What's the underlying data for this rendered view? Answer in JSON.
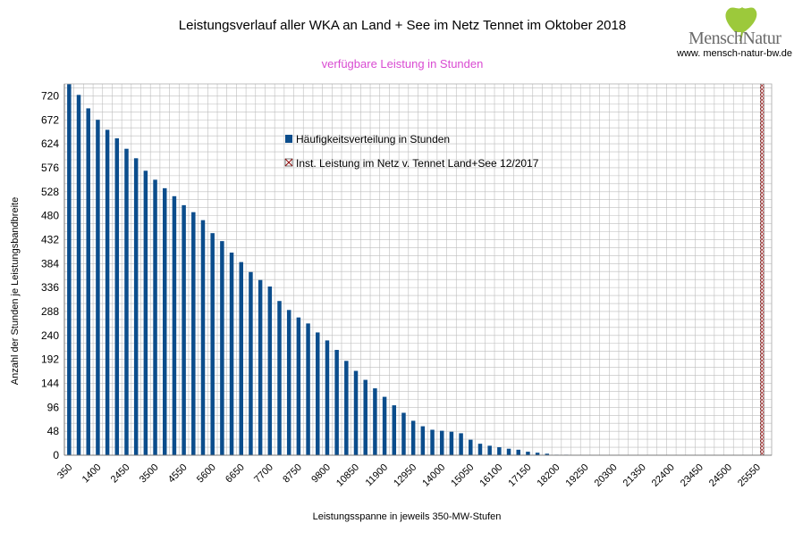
{
  "header": {
    "logo_text": "MenschNatur",
    "website": "www. mensch-natur-bw.de"
  },
  "colors": {
    "bar": "#0b4d8c",
    "subtitle": "#d94bd2",
    "grid": "#bdbdbd",
    "leaf": "#9cc93b"
  },
  "chart_data": {
    "type": "bar",
    "title": "Leistungsverlauf aller WKA an Land + See im Netz Tennet im Oktober 2018",
    "subtitle": "verfügbare Leistung in Stunden",
    "xlabel": "Leistungsspanne in jeweils 350-MW-Stufen",
    "ylabel": "Anzahl der Stunden je Leistungsbandbreite",
    "ylim": [
      0,
      744
    ],
    "yticks": [
      0,
      48,
      96,
      144,
      192,
      240,
      288,
      336,
      384,
      432,
      480,
      528,
      576,
      624,
      672,
      720
    ],
    "x_tick_labels": [
      "350",
      "1400",
      "2450",
      "3500",
      "4550",
      "5600",
      "6650",
      "7700",
      "8750",
      "9800",
      "10850",
      "11900",
      "12950",
      "14000",
      "15050",
      "16100",
      "17150",
      "18200",
      "19250",
      "20300",
      "21350",
      "22400",
      "23450",
      "24500",
      "25550"
    ],
    "categories": [
      350,
      700,
      1050,
      1400,
      1750,
      2100,
      2450,
      2800,
      3150,
      3500,
      3850,
      4200,
      4550,
      4900,
      5250,
      5600,
      5950,
      6300,
      6650,
      7000,
      7350,
      7700,
      8050,
      8400,
      8750,
      9100,
      9450,
      9800,
      10150,
      10500,
      10850,
      11200,
      11550,
      11900,
      12250,
      12600,
      12950,
      13300,
      13650,
      14000,
      14350,
      14700,
      15050,
      15400,
      15750,
      16100,
      16450,
      16800,
      17150,
      17500,
      17850,
      18200,
      18550,
      18900,
      19250,
      19600,
      19950,
      20300,
      20650,
      21000,
      21350,
      21700,
      22050,
      22400,
      22750,
      23100,
      23450,
      23800,
      24150,
      24500,
      24850,
      25200,
      25550
    ],
    "series": [
      {
        "name": "Häufigkeitsverteilung in Stunden",
        "values": [
          744,
          722,
          695,
          672,
          652,
          635,
          614,
          595,
          570,
          552,
          535,
          519,
          501,
          487,
          471,
          445,
          429,
          406,
          387,
          367,
          351,
          338,
          309,
          291,
          276,
          264,
          246,
          230,
          211,
          189,
          169,
          151,
          134,
          117,
          100,
          85,
          69,
          58,
          51,
          49,
          47,
          44,
          31,
          23,
          19,
          16,
          13,
          11,
          7,
          5,
          3,
          1,
          1,
          0,
          0,
          0,
          0,
          0,
          0,
          0,
          0,
          0,
          0,
          0,
          0,
          0,
          0,
          0,
          0,
          0,
          0,
          0,
          0
        ]
      },
      {
        "name": "Inst. Leistung im Netz v. Tennet  Land+See 12/2017",
        "x": 25550
      }
    ],
    "legend_position": "inside-top-center",
    "grid": true
  }
}
